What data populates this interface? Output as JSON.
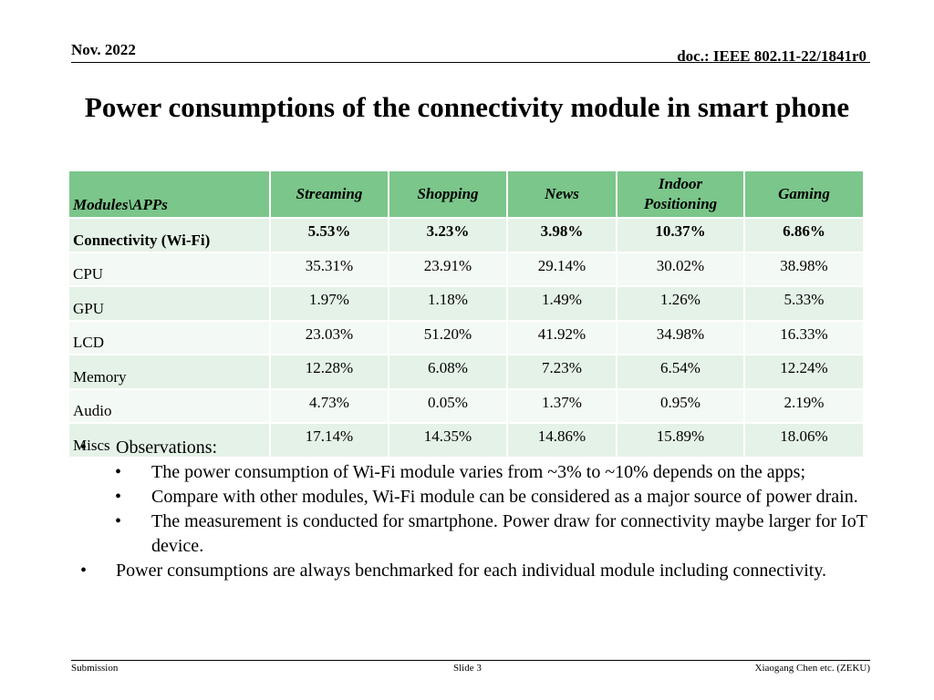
{
  "header": {
    "date": "Nov. 2022",
    "doc": "doc.: IEEE 802.11-22/1841r0"
  },
  "title": "Power consumptions of the connectivity module in smart phone",
  "table": {
    "corner": "Modules\\APPs",
    "columns": [
      "Streaming",
      "Shopping",
      "News",
      "Indoor Positioning",
      "Gaming"
    ],
    "rows": [
      {
        "module": "Connectivity (Wi-Fi)",
        "values": [
          "5.53%",
          "3.23%",
          "3.98%",
          "10.37%",
          "6.86%"
        ]
      },
      {
        "module": "CPU",
        "values": [
          "35.31%",
          "23.91%",
          "29.14%",
          "30.02%",
          "38.98%"
        ]
      },
      {
        "module": "GPU",
        "values": [
          "1.97%",
          "1.18%",
          "1.49%",
          "1.26%",
          "5.33%"
        ]
      },
      {
        "module": "LCD",
        "values": [
          "23.03%",
          "51.20%",
          "41.92%",
          "34.98%",
          "16.33%"
        ]
      },
      {
        "module": "Memory",
        "values": [
          "12.28%",
          "6.08%",
          "7.23%",
          "6.54%",
          "12.24%"
        ]
      },
      {
        "module": "Audio",
        "values": [
          "4.73%",
          "0.05%",
          "1.37%",
          "0.95%",
          "2.19%"
        ]
      },
      {
        "module": "Miscs",
        "values": [
          "17.14%",
          "14.35%",
          "14.86%",
          "15.89%",
          "18.06%"
        ]
      }
    ]
  },
  "bullets": [
    {
      "text": "Observations:",
      "sub": [
        "The power consumption of Wi-Fi module varies from ~3% to ~10% depends on the apps;",
        "Compare with other modules, Wi-Fi module can be considered as a major source of power drain.",
        "The measurement is conducted for smartphone. Power draw for connectivity maybe larger for IoT device."
      ]
    },
    {
      "text": "Power consumptions are always benchmarked for each individual module including connectivity.",
      "sub": []
    }
  ],
  "footer": {
    "left": "Submission",
    "center": "Slide 3",
    "right": "Xiaogang Chen etc. (ZEKU)"
  },
  "colors": {
    "header_fill": "#7bc68a",
    "row_odd": "#e5f2e7",
    "row_even": "#f3f9f4"
  }
}
